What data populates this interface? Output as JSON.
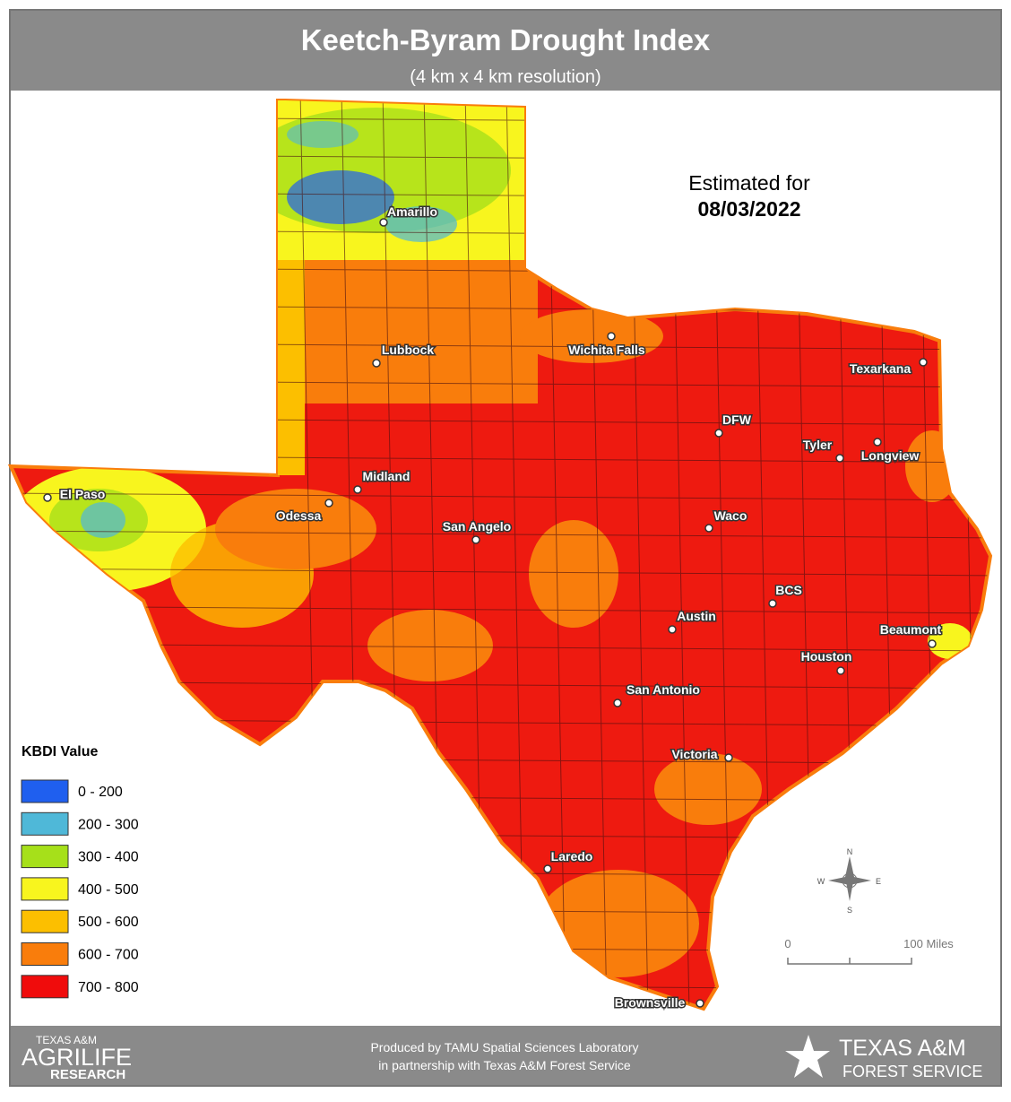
{
  "header": {
    "title": "Keetch-Byram Drought Index",
    "subtitle": "(4 km x 4 km resolution)"
  },
  "estimate": {
    "label": "Estimated for",
    "date": "08/03/2022"
  },
  "cities": [
    "Amarillo",
    "Lubbock",
    "Wichita Falls",
    "Texarkana",
    "DFW",
    "Tyler",
    "Longview",
    "Midland",
    "El Paso",
    "Odessa",
    "San Angelo",
    "Waco",
    "BCS",
    "Austin",
    "Beaumont",
    "Houston",
    "San Antonio",
    "Victoria",
    "Laredo",
    "Brownsville"
  ],
  "legend": {
    "title": "KBDI Value",
    "items": [
      {
        "label": "0 - 200",
        "color": "#1f5fef"
      },
      {
        "label": "200 - 300",
        "color": "#4fb8d8"
      },
      {
        "label": "300 - 400",
        "color": "#a6e01a"
      },
      {
        "label": "400 - 500",
        "color": "#f8f51e"
      },
      {
        "label": "500 - 600",
        "color": "#fcbf00"
      },
      {
        "label": "600 - 700",
        "color": "#f97d0c"
      },
      {
        "label": "700 - 800",
        "color": "#f00c0c"
      }
    ]
  },
  "scale": {
    "start": "0",
    "end": "100 Miles"
  },
  "compass": {
    "n": "N",
    "e": "E",
    "s": "S",
    "w": "W"
  },
  "footer": {
    "credit": [
      "Produced by TAMU Spatial Sciences Laboratory",
      "in partnership with Texas A&M Forest Service"
    ],
    "left_logo": [
      "TEXAS A&M",
      "AGRILIFE",
      "RESEARCH"
    ],
    "right_logo": [
      "TEXAS A&M",
      "FOREST SERVICE"
    ]
  }
}
